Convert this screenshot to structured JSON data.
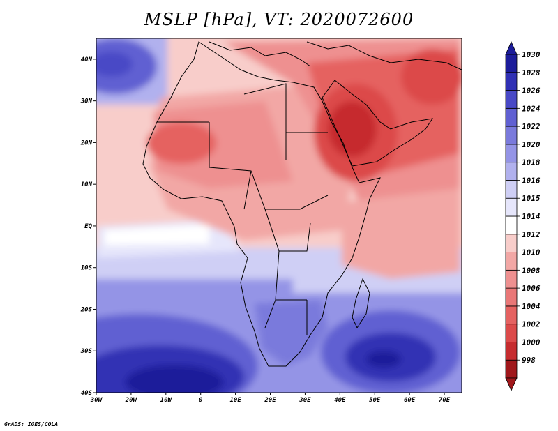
{
  "title": "MSLP [hPa], VT: 2020072600",
  "footer": "GrADS: IGES/COLA",
  "map": {
    "variable": "MSLP",
    "units": "hPa",
    "valid_time": "2020072600",
    "projection": "latlon",
    "lon_range": [
      -30,
      75
    ],
    "lat_range": [
      -40,
      45
    ],
    "lon_ticks": [
      "30W",
      "20W",
      "10W",
      "0",
      "10E",
      "20E",
      "30E",
      "40E",
      "50E",
      "60E",
      "70E"
    ],
    "lat_ticks": [
      "40S",
      "30S",
      "20S",
      "10S",
      "EQ",
      "10N",
      "20N",
      "30N",
      "40N"
    ]
  },
  "colorbar": {
    "levels": [
      "998",
      "1000",
      "1002",
      "1004",
      "1006",
      "1008",
      "1010",
      "1012",
      "1014",
      "1015",
      "1016",
      "1018",
      "1020",
      "1022",
      "1024",
      "1026",
      "1028",
      "1030"
    ],
    "colors": [
      "#a0171b",
      "#c62c2f",
      "#dc4a4a",
      "#e56261",
      "#e97777",
      "#ee9090",
      "#f2a7a5",
      "#f8cdca",
      "#ffffff",
      "#e6e6fb",
      "#cfcff5",
      "#b1b1ee",
      "#9494e6",
      "#7a7adc",
      "#6060d2",
      "#4848c6",
      "#3030b4",
      "#1c1c9a"
    ]
  }
}
